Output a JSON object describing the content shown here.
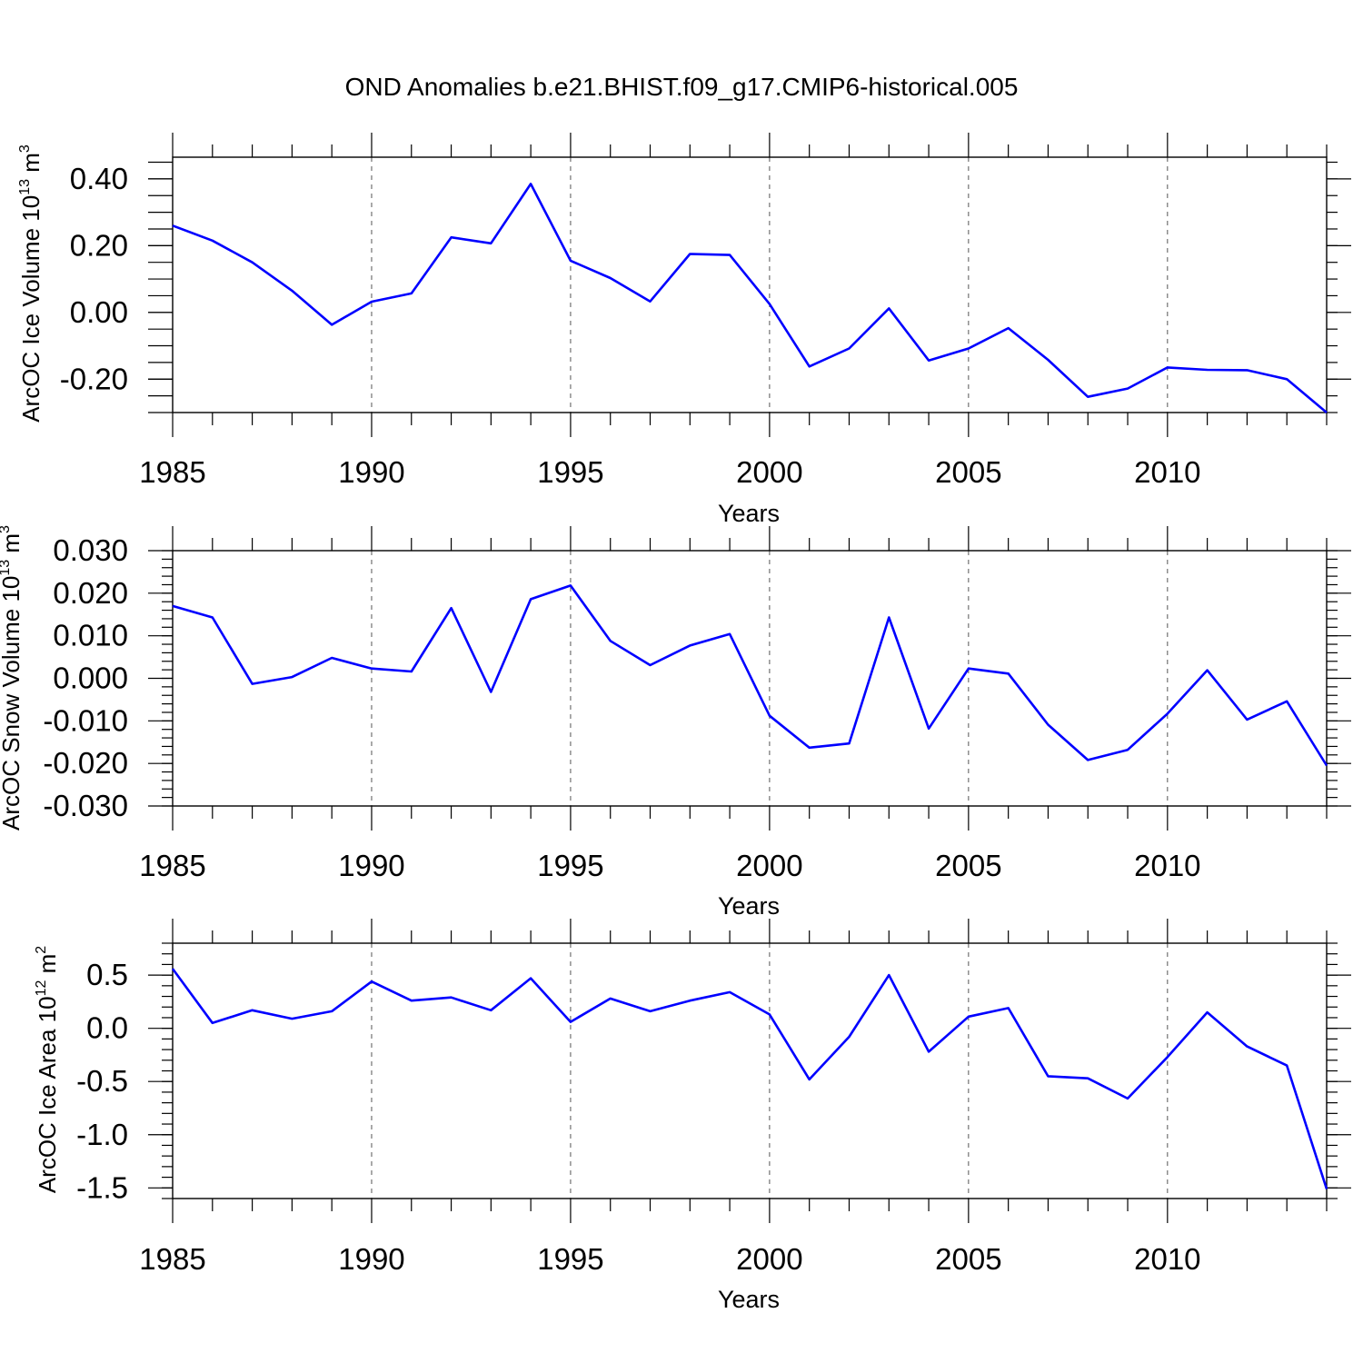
{
  "title": "OND Anomalies b.e21.BHIST.f09_g17.CMIP6-historical.005",
  "line_color": "#0000ff",
  "chart_data": [
    {
      "type": "line",
      "title": "OND Anomalies b.e21.BHIST.f09_g17.CMIP6-historical.005",
      "xlabel": "Years",
      "ylabel": {
        "main": "ArcOC Ice Volume 10",
        "exp": "13",
        "unit": " m",
        "unit_exp": "3"
      },
      "xlim": [
        1985,
        2014
      ],
      "ylim": [
        -0.3,
        0.465
      ],
      "x_ticks": [
        1985,
        1990,
        1995,
        2000,
        2005,
        2010
      ],
      "x_tick_labels": [
        "1985",
        "1990",
        "1995",
        "2000",
        "2005",
        "2010"
      ],
      "y_ticks": [
        -0.2,
        0.0,
        0.2,
        0.4
      ],
      "y_tick_labels": [
        "-0.20",
        "0.00",
        "0.20",
        "0.40"
      ],
      "y_minor_step": 0.05,
      "grid": "dashed vertical at labeled years",
      "x": [
        1985,
        1986,
        1987,
        1988,
        1989,
        1990,
        1991,
        1992,
        1993,
        1994,
        1995,
        1996,
        1997,
        1998,
        1999,
        2000,
        2001,
        2002,
        2003,
        2004,
        2005,
        2006,
        2007,
        2008,
        2009,
        2010,
        2011,
        2012,
        2013,
        2014
      ],
      "series": [
        {
          "values": [
            0.26,
            0.215,
            0.15,
            0.065,
            -0.037,
            0.032,
            0.057,
            0.225,
            0.207,
            0.385,
            0.155,
            0.103,
            0.033,
            0.175,
            0.172,
            0.025,
            -0.162,
            -0.108,
            0.012,
            -0.144,
            -0.108,
            -0.047,
            -0.142,
            -0.253,
            -0.228,
            -0.165,
            -0.172,
            -0.173,
            -0.2,
            -0.3
          ]
        }
      ]
    },
    {
      "type": "line",
      "xlabel": "Years",
      "ylabel": {
        "main": "ArcOC Snow Volume 10",
        "exp": "13",
        "unit": " m",
        "unit_exp": "3"
      },
      "xlim": [
        1985,
        2014
      ],
      "ylim": [
        -0.03,
        0.03
      ],
      "x_ticks": [
        1985,
        1990,
        1995,
        2000,
        2005,
        2010
      ],
      "x_tick_labels": [
        "1985",
        "1990",
        "1995",
        "2000",
        "2005",
        "2010"
      ],
      "y_ticks": [
        -0.03,
        -0.02,
        -0.01,
        0.0,
        0.01,
        0.02,
        0.03
      ],
      "y_tick_labels": [
        "-0.030",
        "-0.020",
        "-0.010",
        "0.000",
        "0.010",
        "0.020",
        "0.030"
      ],
      "y_minor_step": 0.002,
      "grid": "dashed vertical at labeled years",
      "x": [
        1985,
        1986,
        1987,
        1988,
        1989,
        1990,
        1991,
        1992,
        1993,
        1994,
        1995,
        1996,
        1997,
        1998,
        1999,
        2000,
        2001,
        2002,
        2003,
        2004,
        2005,
        2006,
        2007,
        2008,
        2009,
        2010,
        2011,
        2012,
        2013,
        2014
      ],
      "series": [
        {
          "values": [
            0.017,
            0.0143,
            -0.0013,
            0.0003,
            0.0048,
            0.0023,
            0.0016,
            0.0165,
            -0.0032,
            0.0186,
            0.0218,
            0.0088,
            0.0031,
            0.0077,
            0.0104,
            -0.0088,
            -0.0163,
            -0.0153,
            0.0143,
            -0.0118,
            0.0023,
            0.0011,
            -0.0109,
            -0.0192,
            -0.0168,
            -0.0083,
            0.0019,
            -0.0097,
            -0.0054,
            -0.0205
          ]
        }
      ]
    },
    {
      "type": "line",
      "xlabel": "Years",
      "ylabel": {
        "main": "ArcOC Ice Area 10",
        "exp": "12",
        "unit": " m",
        "unit_exp": "2"
      },
      "xlim": [
        1985,
        2014
      ],
      "ylim": [
        -1.6,
        0.8
      ],
      "x_ticks": [
        1985,
        1990,
        1995,
        2000,
        2005,
        2010
      ],
      "x_tick_labels": [
        "1985",
        "1990",
        "1995",
        "2000",
        "2005",
        "2010"
      ],
      "y_ticks": [
        -1.5,
        -1.0,
        -0.5,
        0.0,
        0.5
      ],
      "y_tick_labels": [
        "-1.5",
        "-1.0",
        "-0.5",
        "0.0",
        "0.5"
      ],
      "y_minor_step": 0.1,
      "grid": "dashed vertical at labeled years",
      "x": [
        1985,
        1986,
        1987,
        1988,
        1989,
        1990,
        1991,
        1992,
        1993,
        1994,
        1995,
        1996,
        1997,
        1998,
        1999,
        2000,
        2001,
        2002,
        2003,
        2004,
        2005,
        2006,
        2007,
        2008,
        2009,
        2010,
        2011,
        2012,
        2013,
        2014
      ],
      "series": [
        {
          "values": [
            0.56,
            0.05,
            0.17,
            0.09,
            0.16,
            0.44,
            0.26,
            0.29,
            0.17,
            0.47,
            0.06,
            0.28,
            0.16,
            0.26,
            0.34,
            0.13,
            -0.48,
            -0.08,
            0.5,
            -0.22,
            0.11,
            0.19,
            -0.45,
            -0.47,
            -0.66,
            -0.27,
            0.15,
            -0.17,
            -0.35,
            -1.51
          ]
        }
      ]
    }
  ]
}
